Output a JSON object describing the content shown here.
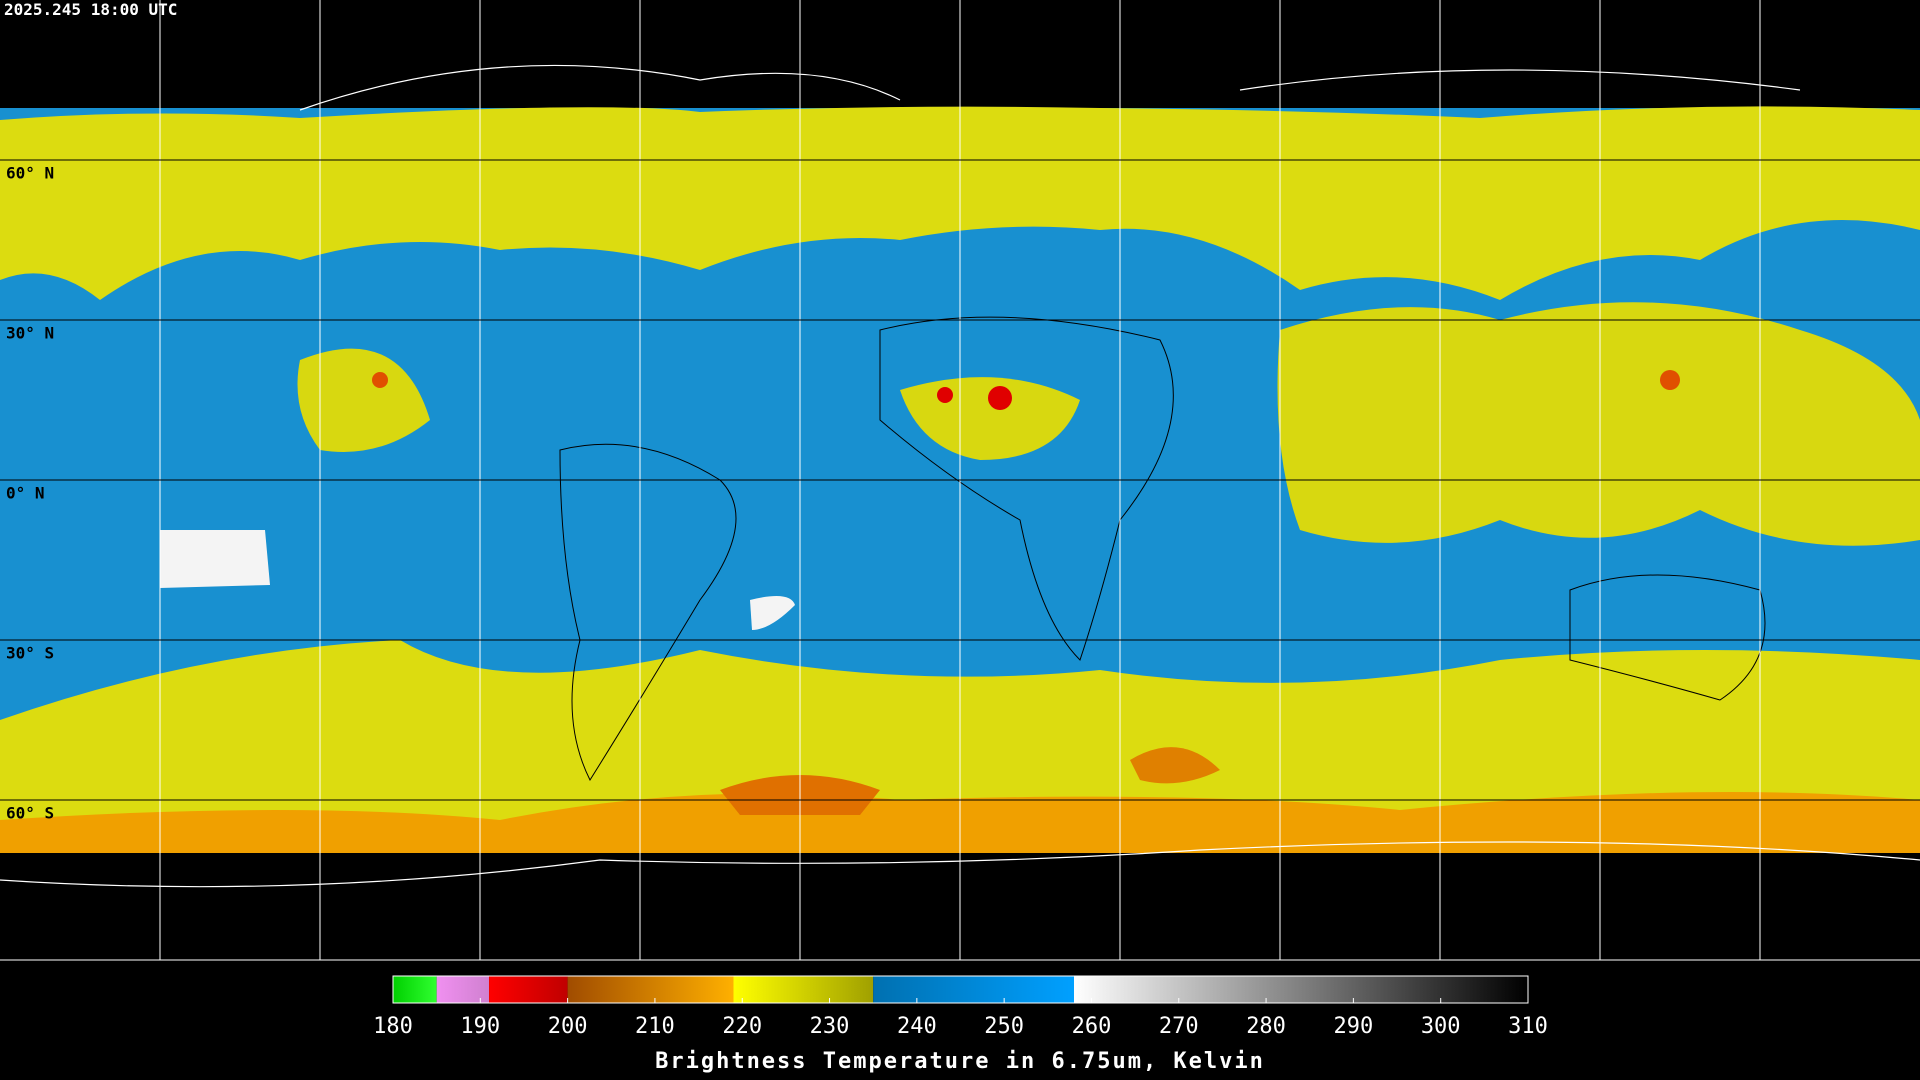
{
  "map": {
    "timestamp": "2025.245 18:00 UTC",
    "latitudes": [
      {
        "value": 60,
        "label": "60° N"
      },
      {
        "value": 30,
        "label": "30° N"
      },
      {
        "value": 0,
        "label": "0° N"
      },
      {
        "value": -30,
        "label": "30° S"
      },
      {
        "value": -60,
        "label": "60° S"
      }
    ]
  },
  "colorbar": {
    "title": "Brightness Temperature in 6.75um, Kelvin",
    "range": [
      180,
      310
    ],
    "ticks": [
      180,
      190,
      200,
      210,
      220,
      230,
      240,
      250,
      260,
      270,
      280,
      290,
      300,
      310
    ],
    "segments": [
      {
        "from": 180,
        "to": 185,
        "colors": [
          "#00d000",
          "#30ff30"
        ]
      },
      {
        "from": 185,
        "to": 191,
        "colors": [
          "#f090f0",
          "#d080d0"
        ]
      },
      {
        "from": 191,
        "to": 200,
        "colors": [
          "#ff0000",
          "#c00000"
        ]
      },
      {
        "from": 200,
        "to": 219,
        "colors": [
          "#a04c00",
          "#ffb000"
        ]
      },
      {
        "from": 219,
        "to": 235,
        "colors": [
          "#ffff00",
          "#a0a000"
        ]
      },
      {
        "from": 235,
        "to": 258,
        "colors": [
          "#0070b0",
          "#00a0ff"
        ]
      },
      {
        "from": 258,
        "to": 310,
        "colors": [
          "#ffffff",
          "#000000"
        ]
      }
    ]
  }
}
